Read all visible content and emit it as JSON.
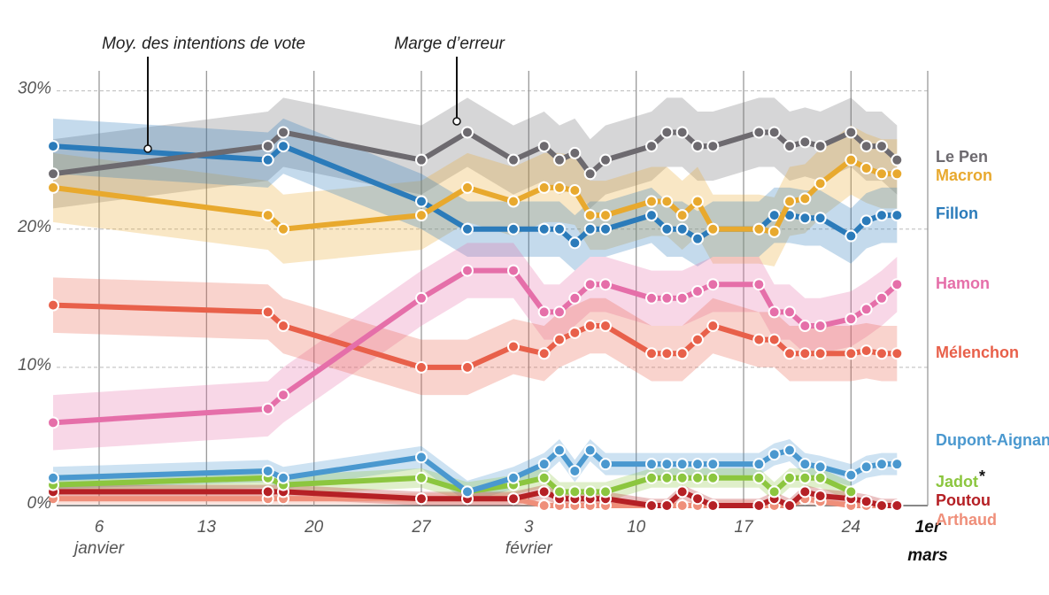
{
  "chart_data": {
    "type": "line",
    "annotations": [
      "Moy. des intentions de vote",
      "Marge d’erreur"
    ],
    "x": [
      3,
      17,
      18,
      27,
      30,
      33,
      35,
      36,
      37,
      38,
      39,
      42,
      43,
      44,
      45,
      46,
      49,
      50,
      51,
      52,
      53,
      55,
      56,
      57,
      58
    ],
    "xlim": [
      3,
      60
    ],
    "xticks": [
      6,
      13,
      20,
      27,
      {
        "value": 34,
        "label": "3"
      },
      {
        "value": 41,
        "label": "10"
      },
      {
        "value": 48,
        "label": "17"
      },
      {
        "value": 55,
        "label": "24"
      },
      {
        "value": 60,
        "label": "1er"
      }
    ],
    "month_labels": [
      {
        "value": 6,
        "label": "janvier"
      },
      {
        "value": 34,
        "label": "février"
      },
      {
        "value": 60,
        "label": "mars"
      }
    ],
    "ylim": [
      0,
      31
    ],
    "yticks": [
      {
        "value": 0,
        "label": "0%"
      },
      {
        "value": 10,
        "label": "10%"
      },
      {
        "value": 20,
        "label": "20%"
      },
      {
        "value": 30,
        "label": "30%"
      }
    ],
    "grid": true,
    "footnote_mark": "*",
    "series": [
      {
        "name": "Le Pen",
        "color": "#6d6a6f",
        "error": 2.5,
        "values": [
          24,
          26,
          27,
          25,
          27,
          25,
          26,
          25,
          25.5,
          24,
          25,
          26,
          27,
          27,
          26,
          26,
          27,
          27,
          26,
          26.3,
          26,
          27,
          26,
          26,
          25
        ]
      },
      {
        "name": "Macron",
        "color": "#e8a92e",
        "error": 2.5,
        "values": [
          23,
          21,
          20,
          21,
          23,
          22,
          23,
          23,
          22.8,
          21,
          21,
          22,
          22,
          21,
          22,
          20,
          20,
          19.8,
          22,
          22.2,
          23.3,
          25,
          24.4,
          24,
          24
        ]
      },
      {
        "name": "Fillon",
        "color": "#2b7bba",
        "error": 2,
        "values": [
          26,
          25,
          26,
          22,
          20,
          20,
          20,
          20,
          19,
          20,
          20,
          21,
          20,
          20,
          19.3,
          20,
          20,
          21,
          21,
          20.8,
          20.8,
          19.5,
          20.6,
          21,
          21
        ]
      },
      {
        "name": "Hamon",
        "color": "#e56fa9",
        "error": 2,
        "values": [
          6,
          7,
          8,
          15,
          17,
          17,
          14,
          14,
          15,
          16,
          16,
          15,
          15,
          15,
          15.5,
          16,
          16,
          14,
          14,
          13,
          13,
          13.5,
          14.2,
          15,
          16
        ]
      },
      {
        "name": "Mélenchon",
        "color": "#e8604a",
        "error": 2,
        "values": [
          14.5,
          14,
          13,
          10,
          10,
          11.5,
          11,
          12,
          12.5,
          13,
          13,
          11,
          11,
          11,
          12,
          13,
          12,
          12,
          11,
          11,
          11,
          11,
          11.2,
          11,
          11
        ]
      },
      {
        "name": "Dupont-Aignan",
        "color": "#4a98cf",
        "error": 0.8,
        "values": [
          2,
          2.5,
          2,
          3.5,
          1,
          2,
          3,
          4,
          2.5,
          4,
          3,
          3,
          3,
          3,
          3,
          3,
          3,
          3.7,
          4,
          3,
          2.8,
          2.2,
          2.8,
          3,
          3
        ]
      },
      {
        "name": "Jadot",
        "color": "#8cc63f",
        "error": 0.7,
        "values": [
          1.5,
          2,
          1.5,
          2,
          1,
          1.5,
          2,
          1,
          1,
          1,
          1,
          2,
          2,
          2,
          2,
          2,
          2,
          1,
          2,
          2,
          2,
          1,
          null,
          null,
          null
        ]
      },
      {
        "name": "Poutou",
        "color": "#b52025",
        "error": 0.5,
        "values": [
          1,
          1,
          1,
          0.5,
          0.5,
          0.5,
          1,
          0.5,
          0.5,
          0.5,
          0.5,
          0,
          0,
          1,
          0.5,
          0,
          0,
          0.5,
          0,
          1,
          0.7,
          0.5,
          0.3,
          0,
          0
        ]
      },
      {
        "name": "Arthaud",
        "color": "#ef8f7a",
        "error": 0.4,
        "values": [
          0.5,
          0.5,
          0.5,
          0.5,
          0.5,
          0.5,
          0,
          0,
          0,
          0,
          0,
          0,
          0,
          0,
          0,
          0,
          0,
          0,
          0,
          0.5,
          0.3,
          0,
          0,
          0,
          0
        ]
      }
    ]
  }
}
